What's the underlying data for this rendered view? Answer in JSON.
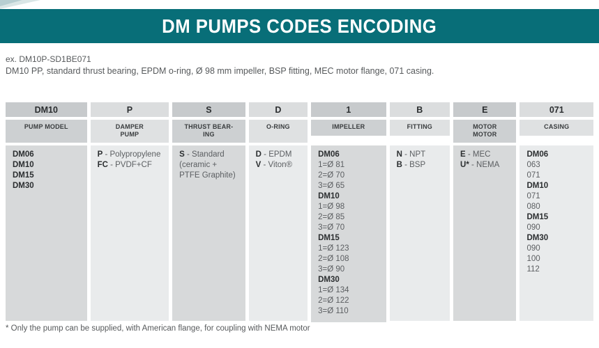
{
  "page": {
    "title": "DM PUMPS CODES ENCODING",
    "example_code": "ex. DM10P-SD1BE071",
    "example_description": "DM10 PP, standard thrust bearing, EPDM o-ring, Ø 98 mm impeller, BSP fitting, MEC motor flange, 071 casing.",
    "footnote": "* Only the pump can be supplied, with American flange, for coupling with NEMA motor"
  },
  "colors": {
    "accent_teal": "#086e78",
    "dark_column_header": "#c7cacc",
    "dark_column_body": "#d7d9da",
    "light_column_header": "#dbddde",
    "light_column_body": "#e9ebec",
    "text_bold": "#2b2e30",
    "text_regular": "#5b5e61"
  },
  "table": {
    "columns": [
      {
        "code": "DM10",
        "label": [
          "PUMP MODEL"
        ],
        "body": [
          {
            "b": "DM06"
          },
          {
            "b": "DM10"
          },
          {
            "b": "DM15"
          },
          {
            "b": "DM30"
          }
        ]
      },
      {
        "code": "P",
        "label": [
          "DAMPER",
          "PUMP"
        ],
        "body": [
          {
            "b": "P",
            "t": " - Polypropylene"
          },
          {
            "b": "FC",
            "t": " - PVDF+CF"
          }
        ]
      },
      {
        "code": "S",
        "label": [
          "THRUST BEAR-",
          "ING"
        ],
        "body": [
          {
            "b": "S",
            "t": " - Standard"
          },
          {
            "t": "(ceramic +"
          },
          {
            "t": "PTFE Graphite)"
          }
        ]
      },
      {
        "code": "D",
        "label": [
          "O-RING"
        ],
        "body": [
          {
            "b": "D",
            "t": " - EPDM"
          },
          {
            "b": "V",
            "t": " - Viton®"
          }
        ]
      },
      {
        "code": "1",
        "label": [
          "IMPELLER"
        ],
        "body": [
          {
            "b": "DM06"
          },
          {
            "t": "1=Ø 81"
          },
          {
            "t": "2=Ø 70"
          },
          {
            "t": "3=Ø 65"
          },
          {
            "b": "DM10"
          },
          {
            "t": "1=Ø 98"
          },
          {
            "t": "2=Ø 85"
          },
          {
            "t": "3=Ø 70"
          },
          {
            "b": "DM15"
          },
          {
            "t": "1=Ø 123"
          },
          {
            "t": "2=Ø 108"
          },
          {
            "t": "3=Ø 90"
          },
          {
            "b": "DM30"
          },
          {
            "t": "1=Ø 134"
          },
          {
            "t": "2=Ø 122"
          },
          {
            "t": "3=Ø 110"
          }
        ]
      },
      {
        "code": "B",
        "label": [
          "FITTING"
        ],
        "body": [
          {
            "b": "N",
            "t": " - NPT"
          },
          {
            "b": "B",
            "t": " - BSP"
          }
        ]
      },
      {
        "code": "E",
        "label": [
          "MOTOR",
          "MOTOR"
        ],
        "body": [
          {
            "b": "E",
            "t": " - MEC"
          },
          {
            "b": "U*",
            "t": " - NEMA"
          }
        ]
      },
      {
        "code": "071",
        "label": [
          "CASING"
        ],
        "body": [
          {
            "b": "DM06"
          },
          {
            "t": "063"
          },
          {
            "t": "071"
          },
          {
            "b": "DM10"
          },
          {
            "t": "071"
          },
          {
            "t": "080"
          },
          {
            "b": "DM15"
          },
          {
            "t": "090"
          },
          {
            "b": "DM30"
          },
          {
            "t": "090"
          },
          {
            "t": "100"
          },
          {
            "t": "112"
          }
        ]
      }
    ]
  }
}
